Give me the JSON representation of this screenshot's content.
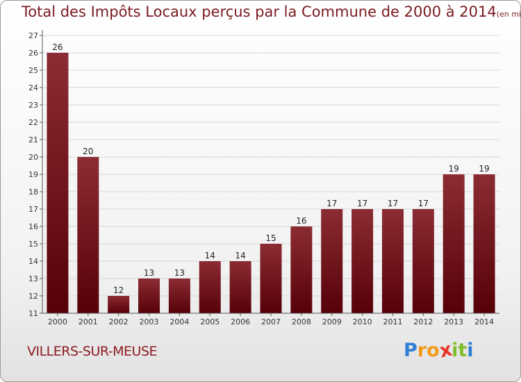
{
  "title": "Total des Impôts Locaux perçus par la Commune de 2000 à 2014",
  "title_unit": "(en milliers d'€)",
  "commune": "VILLERS-SUR-MEUSE",
  "logo": {
    "letters": [
      "P",
      "r",
      "o",
      "x",
      "i",
      "t",
      "i"
    ],
    "colors": [
      "#2f7fd6",
      "#f39a1a",
      "#f39a1a",
      "#e8342a",
      "#7fbf2a",
      "#7fbf2a",
      "#2f7fd6"
    ]
  },
  "colors": {
    "bar_top": "#8b2c33",
    "bar_bottom": "#560008",
    "title": "#7a1a1f"
  },
  "chart_data": {
    "type": "bar",
    "categories": [
      "2000",
      "2001",
      "2002",
      "2003",
      "2004",
      "2005",
      "2006",
      "2007",
      "2008",
      "2009",
      "2010",
      "2011",
      "2012",
      "2013",
      "2014"
    ],
    "values": [
      26,
      20,
      12,
      13,
      13,
      14,
      14,
      15,
      16,
      17,
      17,
      17,
      17,
      19,
      19
    ],
    "ylim": [
      11,
      27
    ],
    "yticks": [
      11,
      12,
      13,
      14,
      15,
      16,
      17,
      18,
      19,
      20,
      21,
      22,
      23,
      24,
      25,
      26,
      27
    ],
    "grid": true
  }
}
